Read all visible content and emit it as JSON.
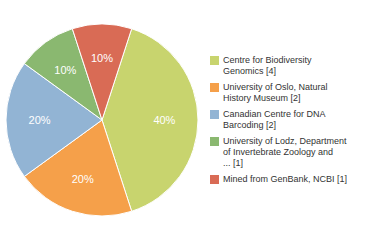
{
  "chart_data": {
    "type": "pie",
    "categories": [
      "Centre for Biodiversity\nGenomics [4]",
      "University of Oslo, Natural\nHistory Museum [2]",
      "Canadian Centre for DNA\nBarcoding [2]",
      "University of Lodz, Department\nof Invertebrate Zoology and\n... [1]",
      "Mined from GenBank, NCBI [1]"
    ],
    "values": [
      40,
      20,
      20,
      10,
      10
    ],
    "value_labels": [
      "40%",
      "20%",
      "20%",
      "10%",
      "10%"
    ],
    "colors": [
      "#c8d46e",
      "#f5a04a",
      "#92b4d4",
      "#8ab870",
      "#d96b55"
    ],
    "data_labels": true,
    "legend": "right"
  }
}
